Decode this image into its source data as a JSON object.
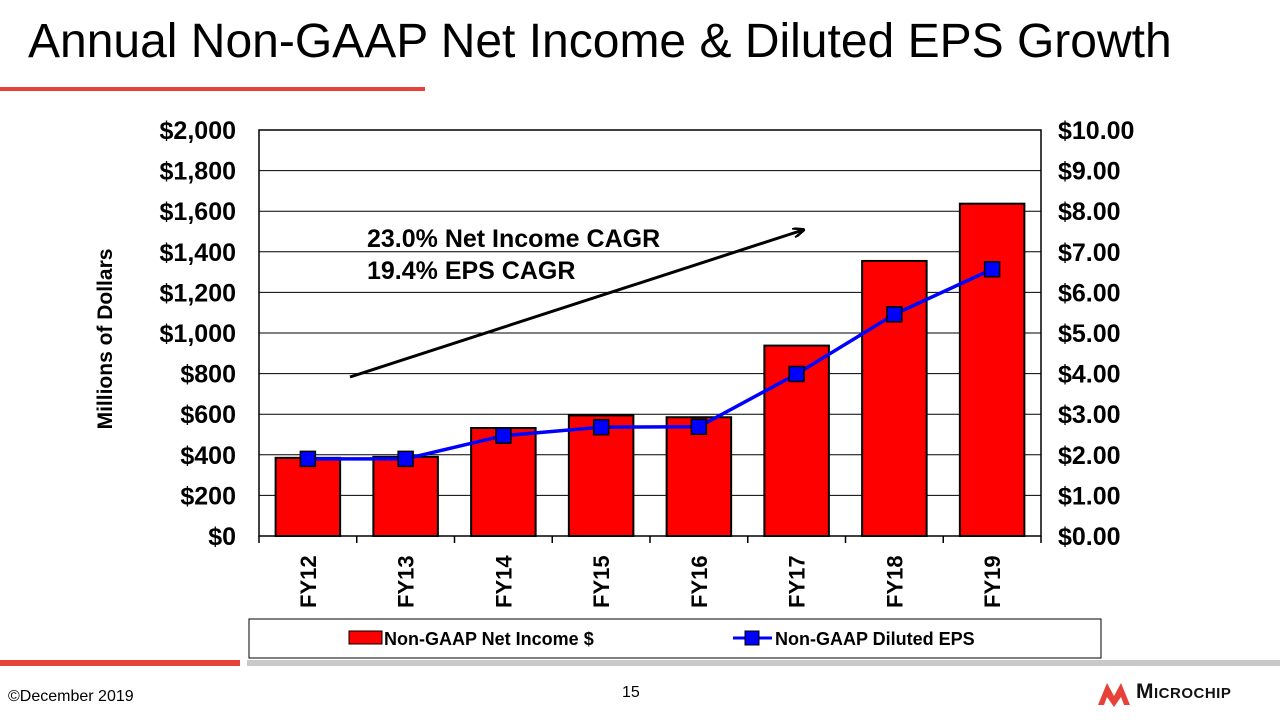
{
  "slide": {
    "title": "Annual Non-GAAP Net Income & Diluted EPS Growth",
    "copyright": "©December 2019",
    "page_number": "15",
    "logo_text": "Microchip"
  },
  "colors": {
    "accent": "#e8413a",
    "bar_fill": "#ff0000",
    "line": "#0000ff",
    "marker": "#0000ff",
    "footer_gray": "#c9c9c9"
  },
  "chart_data": {
    "type": "bar",
    "title": "",
    "ylabel": "Millions of Dollars",
    "y2label": "",
    "categories": [
      "FY12",
      "FY13",
      "FY14",
      "FY15",
      "FY16",
      "FY17",
      "FY18",
      "FY19"
    ],
    "ylim": [
      0,
      2000
    ],
    "y2lim": [
      0,
      10
    ],
    "yticks": [
      "$0",
      "$200",
      "$400",
      "$600",
      "$800",
      "$1,000",
      "$1,200",
      "$1,400",
      "$1,600",
      "$1,800",
      "$2,000"
    ],
    "y2ticks": [
      "$0.00",
      "$1.00",
      "$2.00",
      "$3.00",
      "$4.00",
      "$5.00",
      "$6.00",
      "$7.00",
      "$8.00",
      "$9.00",
      "$10.00"
    ],
    "grid": true,
    "legend_position": "bottom",
    "series": [
      {
        "name": "Non-GAAP Net Income $",
        "type": "bar",
        "axis": "left",
        "values": [
          385,
          390,
          532,
          594,
          585,
          938,
          1355,
          1637
        ]
      },
      {
        "name": "Non-GAAP Diluted EPS",
        "type": "line",
        "axis": "right",
        "values": [
          1.9,
          1.9,
          2.47,
          2.68,
          2.69,
          3.99,
          5.46,
          6.57
        ]
      }
    ],
    "annotations": [
      "23.0% Net Income CAGR",
      "19.4% EPS CAGR"
    ],
    "annotation_arrow": true
  }
}
